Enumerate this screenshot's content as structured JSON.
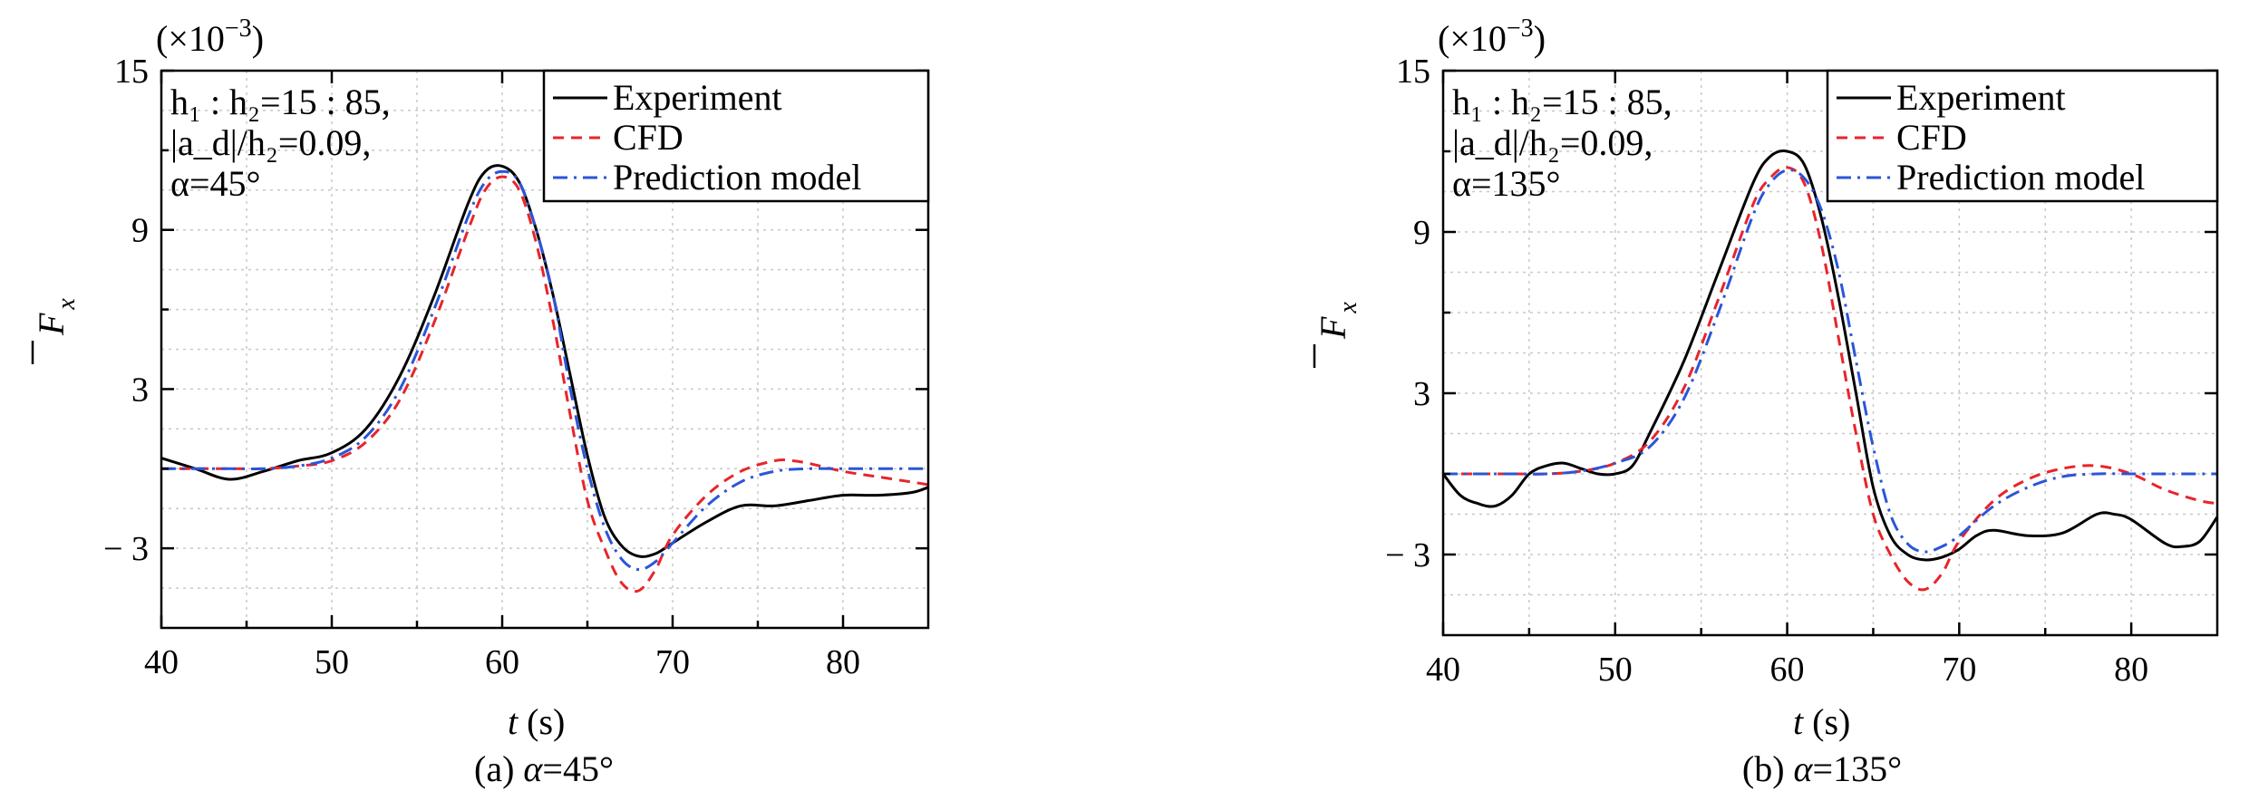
{
  "figure": {
    "panels": [
      {
        "caption_prefix": "(a) ",
        "caption_alpha": "α",
        "caption_value": "=45°",
        "multiplier": "(×10",
        "multiplier_exp": "−3",
        "multiplier_close": ")",
        "ylabel": "F",
        "ylabel_sub": "x",
        "xlabel_var": "t",
        "xlabel_unit": " (s)",
        "ann_line1": "h₁ : h₂=15 : 85,",
        "ann_line2": "|a_d|/h₂=0.09,",
        "ann_line3": "α=45°"
      },
      {
        "caption_prefix": "(b) ",
        "caption_alpha": "α",
        "caption_value": "=135°",
        "multiplier": "(×10",
        "multiplier_exp": "−3",
        "multiplier_close": ")",
        "ylabel": "F",
        "ylabel_sub": "x",
        "xlabel_var": "t",
        "xlabel_unit": " (s)",
        "ann_line1": "h₁ : h₂=15 : 85,",
        "ann_line2": "|a_d|/h₂=0.09,",
        "ann_line3": "α=135°"
      }
    ]
  },
  "chart_data": [
    {
      "type": "line",
      "xlabel": "t (s)",
      "ylabel": "F̄x",
      "y_multiplier": "×10^-3",
      "xlim": [
        40,
        85
      ],
      "ylim": [
        -6,
        15
      ],
      "xticks": [
        40,
        50,
        60,
        70,
        80
      ],
      "yticks": [
        15,
        9,
        3,
        -3
      ],
      "ytick_labels": [
        "15",
        "9",
        "3",
        "− 3"
      ],
      "grid": true,
      "legend_position": "top-right",
      "series": [
        {
          "name": "Experiment",
          "color": "#000000",
          "dash": "solid",
          "x": [
            40,
            42,
            44,
            46,
            48,
            50,
            52,
            54,
            56,
            58,
            59,
            60,
            61,
            62,
            63,
            64,
            65,
            66,
            67,
            68,
            69,
            70,
            72,
            74,
            76,
            78,
            80,
            82,
            84,
            85
          ],
          "y": [
            0.4,
            0.0,
            -0.4,
            -0.1,
            0.3,
            0.6,
            1.5,
            3.5,
            6.5,
            10.0,
            11.2,
            11.4,
            10.8,
            9.0,
            6.5,
            3.5,
            0.5,
            -1.8,
            -2.9,
            -3.3,
            -3.2,
            -2.8,
            -2.0,
            -1.4,
            -1.4,
            -1.2,
            -1.0,
            -1.0,
            -0.9,
            -0.7
          ]
        },
        {
          "name": "CFD",
          "color": "#e8242b",
          "dash": "dashed",
          "x": [
            40,
            44,
            46,
            48,
            50,
            52,
            54,
            56,
            58,
            59,
            60,
            61,
            62,
            63,
            64,
            65,
            66,
            67,
            68,
            69,
            70,
            72,
            74,
            76,
            77,
            78,
            80,
            82,
            84,
            85
          ],
          "y": [
            0.0,
            0.0,
            0.0,
            0.1,
            0.3,
            1.0,
            2.6,
            5.5,
            9.0,
            10.5,
            11.0,
            10.5,
            8.5,
            5.5,
            2.0,
            -1.2,
            -3.0,
            -4.3,
            -4.6,
            -3.8,
            -2.5,
            -1.0,
            -0.1,
            0.3,
            0.3,
            0.2,
            -0.1,
            -0.3,
            -0.5,
            -0.6
          ]
        },
        {
          "name": "Prediction model",
          "color": "#2a56d8",
          "dash": "dashdot",
          "x": [
            40,
            44,
            46,
            48,
            50,
            52,
            54,
            56,
            58,
            59,
            60,
            61,
            62,
            63,
            64,
            65,
            66,
            67,
            68,
            69,
            70,
            72,
            74,
            76,
            78,
            80,
            82,
            84,
            85
          ],
          "y": [
            0.0,
            0.0,
            0.0,
            0.1,
            0.4,
            1.2,
            3.0,
            6.0,
            9.5,
            10.8,
            11.2,
            10.8,
            9.0,
            6.5,
            3.0,
            0.0,
            -2.2,
            -3.4,
            -3.8,
            -3.5,
            -2.8,
            -1.4,
            -0.5,
            -0.1,
            0.0,
            0.0,
            0.0,
            0.0,
            0.0
          ]
        }
      ]
    },
    {
      "type": "line",
      "xlabel": "t (s)",
      "ylabel": "F̄x",
      "y_multiplier": "×10^-3",
      "xlim": [
        40,
        85
      ],
      "ylim": [
        -6,
        15
      ],
      "xticks": [
        40,
        50,
        60,
        70,
        80
      ],
      "yticks": [
        15,
        9,
        3,
        -3
      ],
      "ytick_labels": [
        "15",
        "9",
        "3",
        "− 3"
      ],
      "grid": true,
      "legend_position": "top-right",
      "series": [
        {
          "name": "Experiment",
          "color": "#000000",
          "dash": "solid",
          "x": [
            40,
            41,
            42,
            43,
            44,
            45,
            46,
            47,
            48,
            49,
            50,
            51,
            52,
            54,
            56,
            58,
            59,
            60,
            61,
            62,
            63,
            64,
            65,
            66,
            67,
            68,
            69,
            70,
            71,
            72,
            74,
            76,
            78,
            79,
            80,
            82,
            83,
            84,
            85
          ],
          "y": [
            0.0,
            -0.8,
            -1.1,
            -1.2,
            -0.8,
            0.0,
            0.3,
            0.4,
            0.2,
            0.0,
            0.0,
            0.3,
            1.5,
            4.2,
            7.5,
            10.8,
            11.8,
            12.0,
            11.5,
            9.5,
            6.5,
            3.0,
            -0.5,
            -2.3,
            -3.0,
            -3.2,
            -3.1,
            -2.8,
            -2.3,
            -2.1,
            -2.3,
            -2.2,
            -1.5,
            -1.5,
            -1.7,
            -2.6,
            -2.7,
            -2.5,
            -1.6
          ]
        },
        {
          "name": "CFD",
          "color": "#e8242b",
          "dash": "dashed",
          "x": [
            40,
            44,
            46,
            48,
            50,
            52,
            54,
            56,
            58,
            59,
            60,
            61,
            62,
            63,
            64,
            65,
            66,
            67,
            68,
            69,
            70,
            72,
            74,
            76,
            78,
            80,
            82,
            84,
            85
          ],
          "y": [
            0.0,
            0.0,
            0.0,
            0.1,
            0.4,
            1.2,
            3.2,
            6.5,
            10.0,
            11.0,
            11.4,
            10.8,
            8.5,
            5.0,
            1.5,
            -1.5,
            -3.0,
            -4.0,
            -4.3,
            -3.7,
            -2.5,
            -1.0,
            -0.2,
            0.2,
            0.3,
            0.0,
            -0.6,
            -1.0,
            -1.1
          ]
        },
        {
          "name": "Prediction model",
          "color": "#2a56d8",
          "dash": "dashdot",
          "x": [
            40,
            44,
            46,
            48,
            50,
            52,
            54,
            56,
            58,
            59,
            60,
            61,
            62,
            63,
            64,
            65,
            66,
            67,
            68,
            69,
            70,
            72,
            74,
            76,
            78,
            80,
            82,
            84,
            85
          ],
          "y": [
            0.0,
            0.0,
            0.0,
            0.1,
            0.4,
            1.0,
            2.8,
            6.0,
            9.6,
            10.8,
            11.3,
            11.0,
            9.8,
            7.5,
            4.2,
            1.0,
            -1.5,
            -2.6,
            -2.9,
            -2.7,
            -2.3,
            -1.2,
            -0.5,
            -0.1,
            0.0,
            0.0,
            0.0,
            0.0,
            0.0
          ]
        }
      ]
    }
  ]
}
